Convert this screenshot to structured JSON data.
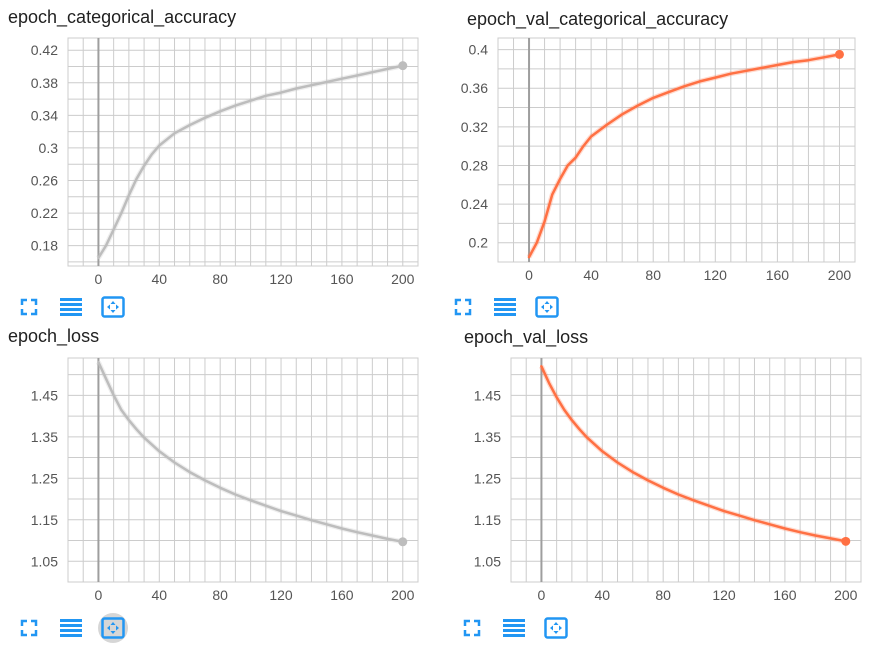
{
  "colors": {
    "train": "#bdbdbd",
    "val": "#ff7043",
    "grid": "#cccccc",
    "axis": "#9e9e9e",
    "icon": "#2196f3"
  },
  "toolbar_icons": [
    "expand-icon",
    "data-list-icon",
    "fit-domain-icon"
  ],
  "chart_data": [
    {
      "type": "line",
      "title": "epoch_categorical_accuracy",
      "xlim": [
        -20,
        210
      ],
      "ylim": [
        0.155,
        0.435
      ],
      "xticks": [
        "0",
        "40",
        "80",
        "120",
        "160",
        "200"
      ],
      "xtick_values": [
        0,
        40,
        80,
        120,
        160,
        200
      ],
      "yticks": [
        "0.18",
        "0.22",
        "0.26",
        "0.3",
        "0.34",
        "0.38",
        "0.42"
      ],
      "ytick_values": [
        0.18,
        0.22,
        0.26,
        0.3,
        0.34,
        0.38,
        0.42
      ],
      "grid": true,
      "series": [
        {
          "color": "#bdbdbd",
          "x": [
            0,
            5,
            10,
            15,
            20,
            25,
            30,
            35,
            40,
            50,
            60,
            70,
            80,
            90,
            100,
            110,
            120,
            130,
            140,
            150,
            160,
            170,
            180,
            190,
            200
          ],
          "y": [
            0.165,
            0.18,
            0.2,
            0.22,
            0.242,
            0.262,
            0.278,
            0.292,
            0.303,
            0.318,
            0.328,
            0.337,
            0.345,
            0.352,
            0.358,
            0.364,
            0.368,
            0.373,
            0.377,
            0.381,
            0.385,
            0.389,
            0.393,
            0.397,
            0.401
          ]
        }
      ]
    },
    {
      "type": "line",
      "title": "epoch_val_categorical_accuracy",
      "xlim": [
        -20,
        210
      ],
      "ylim": [
        0.18,
        0.412
      ],
      "xticks": [
        "0",
        "40",
        "80",
        "120",
        "160",
        "200"
      ],
      "xtick_values": [
        0,
        40,
        80,
        120,
        160,
        200
      ],
      "yticks": [
        "0.2",
        "0.24",
        "0.28",
        "0.32",
        "0.36",
        "0.4"
      ],
      "ytick_values": [
        0.2,
        0.24,
        0.28,
        0.32,
        0.36,
        0.4
      ],
      "grid": true,
      "series": [
        {
          "color": "#ff7043",
          "x": [
            0,
            5,
            10,
            15,
            20,
            25,
            30,
            35,
            40,
            50,
            60,
            70,
            80,
            90,
            100,
            110,
            120,
            130,
            140,
            150,
            160,
            170,
            180,
            190,
            200
          ],
          "y": [
            0.185,
            0.2,
            0.222,
            0.25,
            0.266,
            0.28,
            0.288,
            0.3,
            0.31,
            0.322,
            0.333,
            0.342,
            0.35,
            0.356,
            0.362,
            0.367,
            0.371,
            0.375,
            0.378,
            0.381,
            0.384,
            0.387,
            0.389,
            0.392,
            0.395
          ]
        }
      ]
    },
    {
      "type": "line",
      "title": "epoch_loss",
      "xlim": [
        -20,
        210
      ],
      "ylim": [
        1.0,
        1.54
      ],
      "xticks": [
        "0",
        "40",
        "80",
        "120",
        "160",
        "200"
      ],
      "xtick_values": [
        0,
        40,
        80,
        120,
        160,
        200
      ],
      "yticks": [
        "1.05",
        "1.15",
        "1.25",
        "1.35",
        "1.45"
      ],
      "ytick_values": [
        1.05,
        1.15,
        1.25,
        1.35,
        1.45
      ],
      "grid": true,
      "series": [
        {
          "color": "#bdbdbd",
          "x": [
            0,
            5,
            10,
            15,
            20,
            25,
            30,
            40,
            50,
            60,
            70,
            80,
            90,
            100,
            110,
            120,
            130,
            140,
            150,
            160,
            170,
            180,
            190,
            200
          ],
          "y": [
            1.53,
            1.49,
            1.45,
            1.415,
            1.39,
            1.368,
            1.348,
            1.315,
            1.288,
            1.265,
            1.245,
            1.227,
            1.211,
            1.197,
            1.184,
            1.171,
            1.16,
            1.149,
            1.139,
            1.129,
            1.12,
            1.112,
            1.104,
            1.097
          ]
        }
      ]
    },
    {
      "type": "line",
      "title": "epoch_val_loss",
      "xlim": [
        -20,
        210
      ],
      "ylim": [
        1.0,
        1.54
      ],
      "xticks": [
        "0",
        "40",
        "80",
        "120",
        "160",
        "200"
      ],
      "xtick_values": [
        0,
        40,
        80,
        120,
        160,
        200
      ],
      "yticks": [
        "1.05",
        "1.15",
        "1.25",
        "1.35",
        "1.45"
      ],
      "ytick_values": [
        1.05,
        1.15,
        1.25,
        1.35,
        1.45
      ],
      "grid": true,
      "series": [
        {
          "color": "#ff7043",
          "x": [
            0,
            5,
            10,
            15,
            20,
            25,
            30,
            40,
            50,
            60,
            70,
            80,
            90,
            100,
            110,
            120,
            130,
            140,
            150,
            160,
            170,
            180,
            190,
            200
          ],
          "y": [
            1.52,
            1.48,
            1.445,
            1.415,
            1.39,
            1.368,
            1.348,
            1.315,
            1.288,
            1.265,
            1.245,
            1.227,
            1.211,
            1.197,
            1.184,
            1.171,
            1.16,
            1.149,
            1.139,
            1.129,
            1.12,
            1.112,
            1.105,
            1.098
          ]
        }
      ]
    }
  ]
}
